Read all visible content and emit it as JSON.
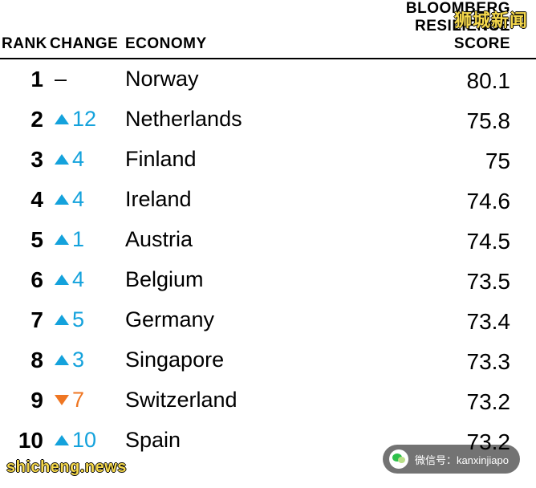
{
  "headers": {
    "rank": "RANK",
    "change": "CHANGE",
    "economy": "ECONOMY",
    "score_line1": "BLOOMBERG",
    "score_line2": "RESILIENCE",
    "score_line3": "SCORE"
  },
  "colors": {
    "up_arrow": "#14a2dc",
    "down_arrow": "#ef7622",
    "up_text": "#14a2dc",
    "down_text": "#ef7622",
    "dash_text": "#000000",
    "header_border": "#000000",
    "background": "#ffffff"
  },
  "bar": {
    "full_width_pct": 100,
    "max_score": 80.1,
    "min_visible_score": 72
  },
  "rows": [
    {
      "rank": "1",
      "change_type": "none",
      "change_num": "–",
      "economy": "Norway",
      "score": "80.1",
      "bar_color": "#15a6df",
      "bar_pct": 100
    },
    {
      "rank": "2",
      "change_type": "up",
      "change_num": "12",
      "economy": "Netherlands",
      "score": "75.8",
      "bar_color": "#25b5ee",
      "bar_pct": 100
    },
    {
      "rank": "3",
      "change_type": "up",
      "change_num": "4",
      "economy": "Finland",
      "score": "75",
      "bar_color": "#25b5ee",
      "bar_pct": 100
    },
    {
      "rank": "4",
      "change_type": "up",
      "change_num": "4",
      "economy": "Ireland",
      "score": "74.6",
      "bar_color": "#3cc3f6",
      "bar_pct": 100
    },
    {
      "rank": "5",
      "change_type": "up",
      "change_num": "1",
      "economy": "Austria",
      "score": "74.5",
      "bar_color": "#3cc3f6",
      "bar_pct": 100
    },
    {
      "rank": "6",
      "change_type": "up",
      "change_num": "4",
      "economy": "Belgium",
      "score": "73.5",
      "bar_color": "#54cdf8",
      "bar_pct": 100
    },
    {
      "rank": "7",
      "change_type": "up",
      "change_num": "5",
      "economy": "Germany",
      "score": "73.4",
      "bar_color": "#54cdf8",
      "bar_pct": 100
    },
    {
      "rank": "8",
      "change_type": "up",
      "change_num": "3",
      "economy": "Singapore",
      "score": "73.3",
      "bar_color": "#54cdf8",
      "bar_pct": 100
    },
    {
      "rank": "9",
      "change_type": "down",
      "change_num": "7",
      "economy": "Switzerland",
      "score": "73.2",
      "bar_color": "#54cdf8",
      "bar_pct": 100
    },
    {
      "rank": "10",
      "change_type": "up",
      "change_num": "10",
      "economy": "Spain",
      "score": "73.2",
      "bar_color": "#54cdf8",
      "bar_pct": 100
    }
  ],
  "watermarks": {
    "top_right": "狮城新闻",
    "bottom_left": "shicheng.news"
  },
  "wechat": {
    "label": "微信号：kanxinjiapo"
  }
}
